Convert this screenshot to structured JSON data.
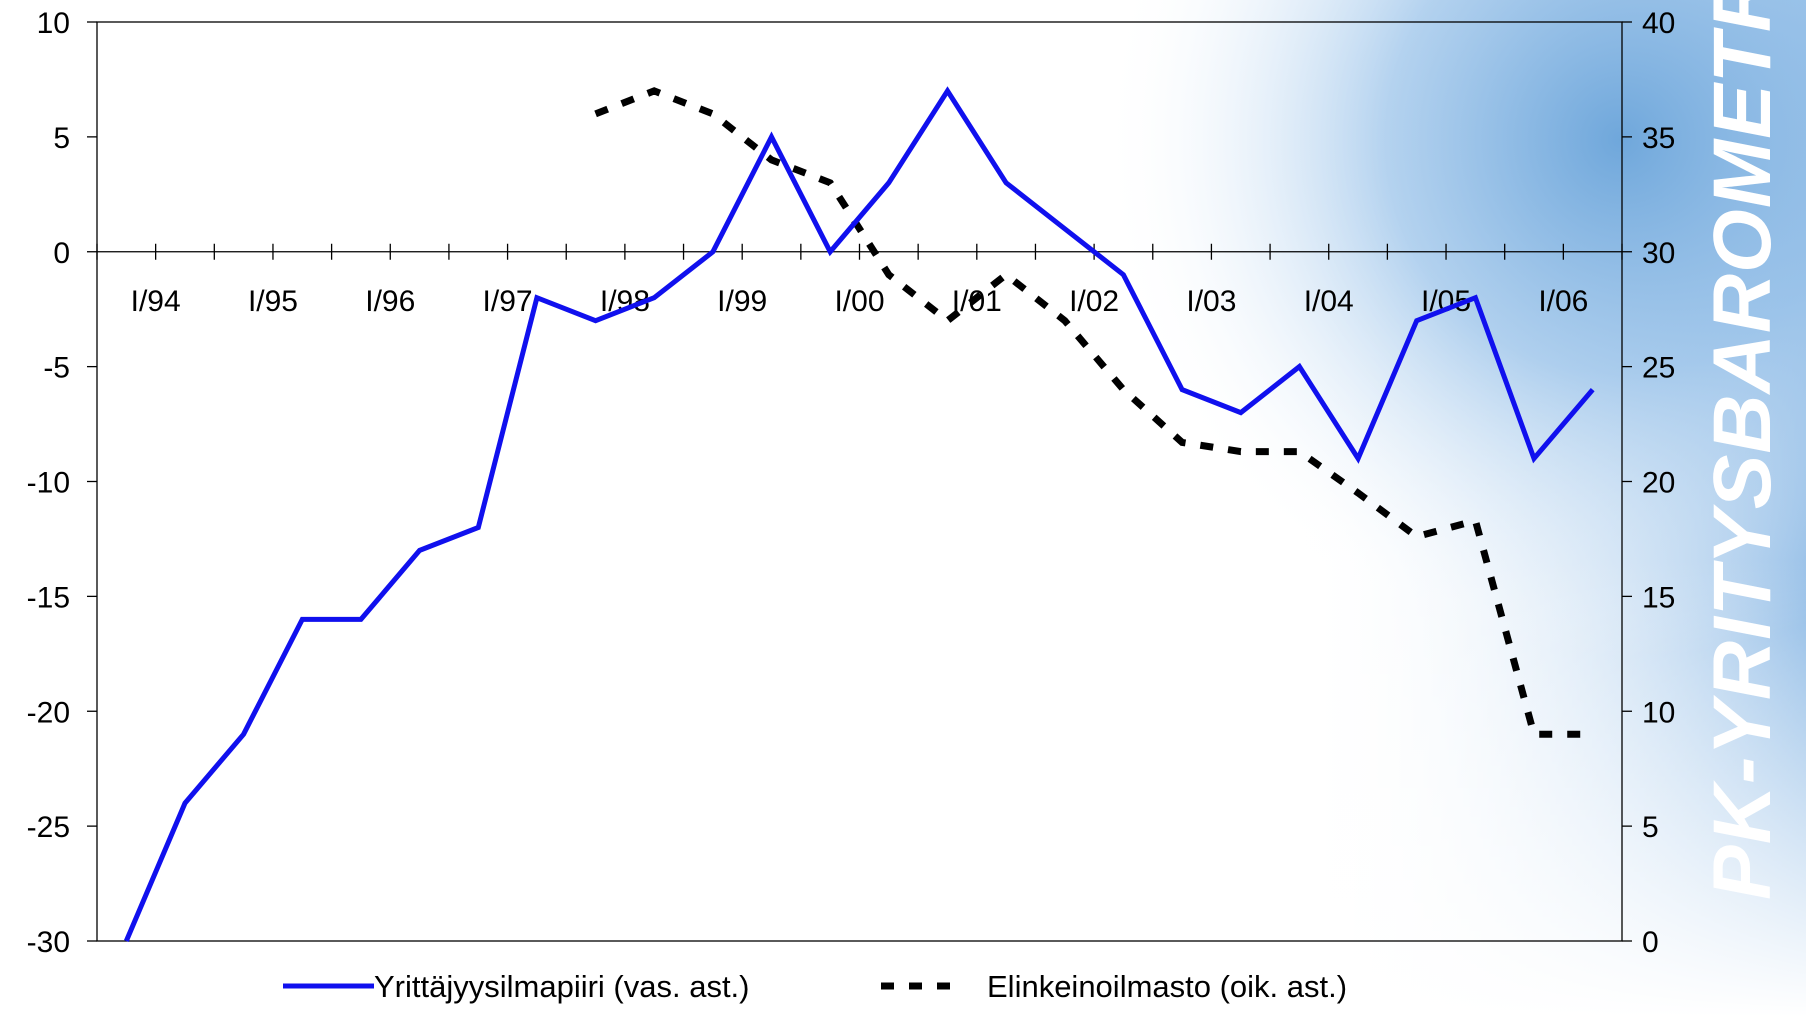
{
  "brand": {
    "text": "PK-YRITYSBAROMETRI"
  },
  "colors": {
    "primary": "#1010ee",
    "secondary": "#000000",
    "accent_bg": "#7fb2e0"
  },
  "chart_data": {
    "type": "line",
    "title": "",
    "xlabel": "",
    "ylabel": "",
    "x_tick_labels": [
      "I/94",
      "I/95",
      "I/96",
      "I/97",
      "I/98",
      "I/99",
      "I/00",
      "I/01",
      "I/02",
      "I/03",
      "I/04",
      "I/05",
      "I/06"
    ],
    "x_count": 26,
    "ylim_left": [
      -30,
      10
    ],
    "yticks_left": [
      "10",
      "5",
      "0",
      "-5",
      "-10",
      "-15",
      "-20",
      "-25",
      "-30"
    ],
    "ylim_right": [
      0,
      40
    ],
    "yticks_right": [
      "40",
      "35",
      "30",
      "25",
      "20",
      "15",
      "10",
      "5",
      "0"
    ],
    "series": [
      {
        "name": "Yrittäjyysilmapiiri (vas. ast.)",
        "axis": "left",
        "style": "solid",
        "color": "#1010ee",
        "values": [
          -30,
          -24,
          -21,
          -16,
          -16,
          -13,
          -12,
          -2,
          -3,
          -2,
          0,
          5,
          0,
          3,
          7,
          3,
          1,
          -1,
          -6,
          -7,
          -5,
          -9,
          -3,
          -2,
          -9,
          -6
        ]
      },
      {
        "name": "Elinkeinoilmasto (oik. ast.)",
        "axis": "right",
        "style": "dashed",
        "color": "#000000",
        "values": [
          null,
          null,
          null,
          null,
          null,
          null,
          null,
          null,
          36,
          37,
          36,
          34,
          33,
          29,
          27,
          29,
          27,
          24,
          21.7,
          21.3,
          21.3,
          19.5,
          17.6,
          18.3,
          9,
          9
        ]
      }
    ],
    "legend": {
      "position": "bottom"
    },
    "grid": false
  }
}
